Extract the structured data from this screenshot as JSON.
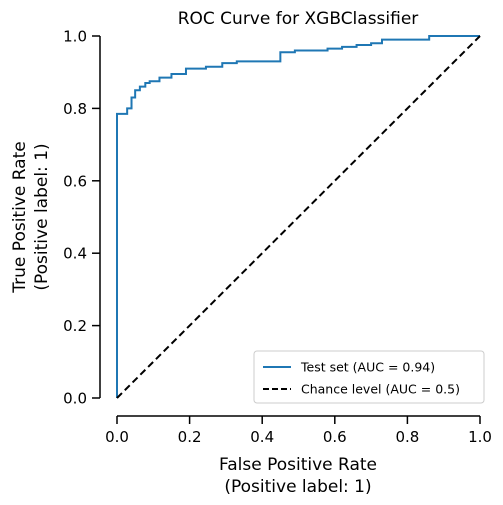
{
  "chart_data": {
    "type": "line",
    "title": "ROC Curve for XGBClassifier",
    "xlabel": [
      "False Positive Rate",
      "(Positive label: 1)"
    ],
    "ylabel": [
      "True Positive Rate",
      "(Positive label: 1)"
    ],
    "xlim": [
      0,
      1
    ],
    "ylim": [
      0,
      1
    ],
    "xticks": [
      "0.0",
      "0.2",
      "0.4",
      "0.6",
      "0.8",
      "1.0"
    ],
    "yticks": [
      "0.0",
      "0.2",
      "0.4",
      "0.6",
      "0.8",
      "1.0"
    ],
    "grid": false,
    "legend_position": "lower-right",
    "series": [
      {
        "name": "Test set (AUC = 0.94)",
        "color": "#1f77b4",
        "style": "solid",
        "x": [
          0.0,
          0.0,
          0.028,
          0.028,
          0.04,
          0.04,
          0.05,
          0.05,
          0.063,
          0.063,
          0.078,
          0.078,
          0.09,
          0.09,
          0.117,
          0.117,
          0.15,
          0.15,
          0.19,
          0.19,
          0.245,
          0.245,
          0.29,
          0.29,
          0.33,
          0.33,
          0.45,
          0.45,
          0.49,
          0.49,
          0.58,
          0.58,
          0.62,
          0.62,
          0.66,
          0.66,
          0.7,
          0.7,
          0.73,
          0.73,
          0.86,
          0.86,
          1.0
        ],
        "y": [
          0.0,
          0.785,
          0.785,
          0.8,
          0.8,
          0.83,
          0.83,
          0.85,
          0.85,
          0.86,
          0.86,
          0.87,
          0.87,
          0.875,
          0.875,
          0.885,
          0.885,
          0.895,
          0.895,
          0.91,
          0.91,
          0.915,
          0.915,
          0.925,
          0.925,
          0.93,
          0.93,
          0.955,
          0.955,
          0.96,
          0.96,
          0.965,
          0.965,
          0.97,
          0.97,
          0.975,
          0.975,
          0.98,
          0.98,
          0.99,
          0.99,
          1.0,
          1.0
        ]
      },
      {
        "name": "Chance level (AUC = 0.5)",
        "color": "#000000",
        "style": "dashed",
        "x": [
          0,
          1
        ],
        "y": [
          0,
          1
        ]
      }
    ]
  }
}
